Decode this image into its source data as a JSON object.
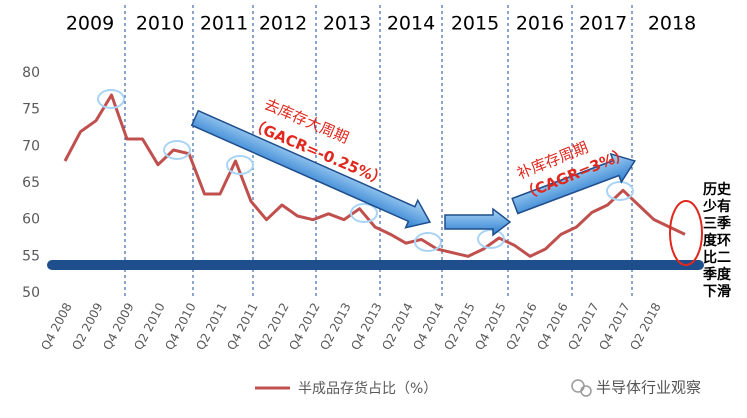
{
  "chart_data": {
    "type": "line",
    "year_labels": [
      "2009",
      "2010",
      "2011",
      "2012",
      "2013",
      "2014",
      "2015",
      "2016",
      "2017",
      "2018"
    ],
    "categories": [
      "Q4 2008",
      null,
      "Q2 2009",
      null,
      "Q4 2009",
      null,
      "Q2 2010",
      null,
      "Q4 2010",
      null,
      "Q2 2011",
      null,
      "Q4 2011",
      null,
      "Q2 2012",
      null,
      "Q4 2012",
      null,
      "Q2 2013",
      null,
      "Q4 2013",
      null,
      "Q2 2014",
      null,
      "Q4 2014",
      null,
      "Q2 2015",
      null,
      "Q4 2015",
      null,
      "Q2 2016",
      null,
      "Q4 2016",
      null,
      "Q2 2017",
      null,
      "Q4 2017",
      null,
      "Q2 2018",
      null,
      null
    ],
    "series": [
      {
        "name": "半成品存货占比（%）",
        "color": "#c0504d",
        "values": [
          68,
          72,
          73.5,
          77,
          71,
          71,
          67.5,
          69.5,
          69,
          63.5,
          63.5,
          68,
          62.5,
          60,
          62,
          60.5,
          60,
          60.8,
          60,
          61.5,
          59,
          58,
          56.8,
          57.3,
          56,
          55.5,
          55,
          56,
          57.5,
          56.5,
          55,
          56,
          58,
          59,
          61,
          62,
          64,
          62,
          60,
          59,
          58
        ]
      }
    ],
    "ylim": [
      50,
      80
    ],
    "yticks": [
      50,
      55,
      60,
      65,
      70,
      75,
      80
    ],
    "annotations": {
      "destock": "去库存大周期",
      "destock_rate": "（GACR=-0.25%）",
      "restock": "补库存周期",
      "restock_rate": "（CAGR=3%）",
      "note": "历史少有三季度环比二季度下滑"
    },
    "watermark": "半导体行业观察"
  }
}
